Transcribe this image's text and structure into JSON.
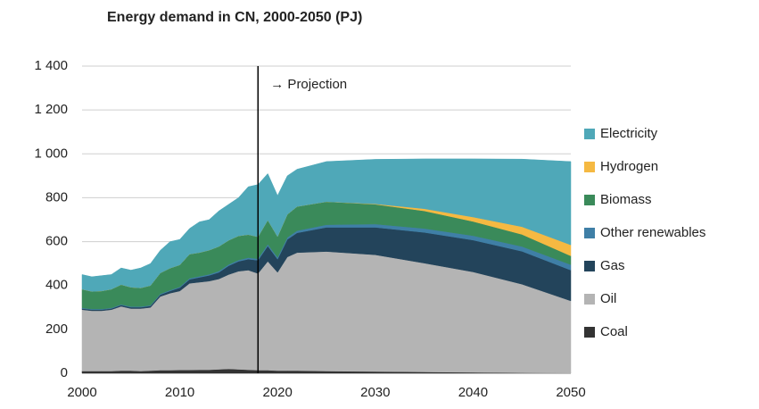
{
  "chart_data": {
    "type": "stacked_area",
    "title": "Energy demand in CN, 2000-2050 (PJ)",
    "x": [
      2000,
      2001,
      2002,
      2003,
      2004,
      2005,
      2006,
      2007,
      2008,
      2009,
      2010,
      2011,
      2012,
      2013,
      2014,
      2015,
      2016,
      2017,
      2018,
      2019,
      2020,
      2021,
      2022,
      2025,
      2030,
      2035,
      2040,
      2045,
      2050
    ],
    "series": [
      {
        "name": "Coal",
        "color": "#333333",
        "values": [
          10,
          10,
          10,
          10,
          12,
          12,
          10,
          12,
          14,
          14,
          15,
          15,
          16,
          16,
          18,
          20,
          18,
          16,
          14,
          14,
          12,
          12,
          12,
          10,
          8,
          6,
          4,
          2,
          1
        ]
      },
      {
        "name": "Oil",
        "color": "#b4b4b4",
        "values": [
          280,
          275,
          275,
          280,
          293,
          283,
          285,
          288,
          336,
          351,
          360,
          395,
          399,
          404,
          412,
          430,
          447,
          454,
          441,
          496,
          448,
          518,
          538,
          545,
          532,
          496,
          458,
          404,
          329
        ]
      },
      {
        "name": "Gas",
        "color": "#23445b",
        "values": [
          5,
          5,
          5,
          5,
          6,
          6,
          6,
          7,
          8,
          10,
          15,
          18,
          22,
          26,
          30,
          40,
          45,
          50,
          60,
          70,
          60,
          80,
          90,
          110,
          125,
          140,
          145,
          150,
          140
        ]
      },
      {
        "name": "Other renewables",
        "color": "#3f7fa6",
        "values": [
          3,
          3,
          3,
          3,
          3,
          3,
          3,
          3,
          4,
          4,
          4,
          5,
          5,
          5,
          6,
          6,
          6,
          7,
          7,
          8,
          8,
          9,
          10,
          12,
          15,
          18,
          20,
          22,
          25
        ]
      },
      {
        "name": "Biomass",
        "color": "#3a8a5a",
        "values": [
          85,
          80,
          82,
          85,
          90,
          88,
          85,
          90,
          95,
          100,
          100,
          110,
          108,
          110,
          112,
          110,
          110,
          105,
          100,
          110,
          95,
          105,
          110,
          105,
          90,
          80,
          65,
          55,
          40
        ]
      },
      {
        "name": "Hydrogen",
        "color": "#f5b942",
        "values": [
          0,
          0,
          0,
          0,
          0,
          0,
          0,
          0,
          0,
          0,
          0,
          0,
          0,
          0,
          0,
          0,
          0,
          0,
          0,
          0,
          0,
          0,
          0,
          0,
          2,
          10,
          20,
          35,
          50
        ]
      },
      {
        "name": "Electricity",
        "color": "#4fa8b8",
        "values": [
          67,
          67,
          70,
          67,
          76,
          78,
          91,
          100,
          103,
          121,
          116,
          117,
          140,
          139,
          162,
          164,
          174,
          218,
          238,
          212,
          187,
          176,
          170,
          183,
          203,
          227,
          265,
          308,
          380
        ]
      }
    ],
    "xlim": [
      2000,
      2050
    ],
    "xticks": [
      2000,
      2010,
      2020,
      2030,
      2040,
      2050
    ],
    "ylim": [
      0,
      1400
    ],
    "yticks": [
      0,
      200,
      400,
      600,
      800,
      {
        "value": 1000,
        "label": "1 000"
      },
      {
        "value": 1200,
        "label": "1 200"
      },
      {
        "value": 1400,
        "label": "1 400"
      }
    ],
    "grid": true,
    "legend": "right",
    "projection": {
      "x": 2018,
      "label": "→ Projection"
    }
  }
}
